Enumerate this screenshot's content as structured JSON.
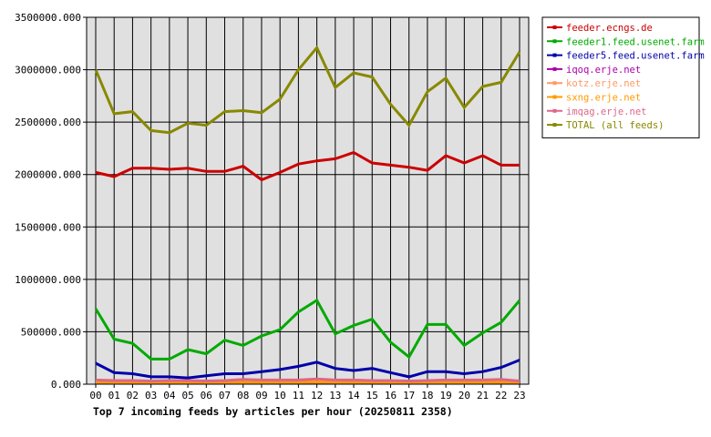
{
  "chart_data": {
    "type": "line",
    "title": "Top 7 incoming feeds by articles per hour (20250811 2358)",
    "xlabel": "",
    "ylabel": "",
    "ylim": [
      0,
      3500000
    ],
    "y_ticks": [
      "0.000",
      "500000.000",
      "1000000.000",
      "1500000.000",
      "2000000.000",
      "2500000.000",
      "3000000.000",
      "3500000.000"
    ],
    "grid": true,
    "legend_position": "right",
    "x": [
      "00",
      "01",
      "02",
      "03",
      "04",
      "05",
      "06",
      "07",
      "08",
      "09",
      "10",
      "11",
      "12",
      "13",
      "14",
      "15",
      "16",
      "17",
      "18",
      "19",
      "20",
      "21",
      "22",
      "23"
    ],
    "series": [
      {
        "name": "feeder.ecngs.de",
        "color": "#cc0000",
        "values": [
          2020000,
          1980000,
          2060000,
          2060000,
          2050000,
          2060000,
          2030000,
          2030000,
          2080000,
          1950000,
          2020000,
          2100000,
          2130000,
          2150000,
          2210000,
          2110000,
          2090000,
          2070000,
          2040000,
          2180000,
          2110000,
          2180000,
          2090000,
          2090000
        ]
      },
      {
        "name": "feeder1.feed.usenet.farm",
        "color": "#00aa00",
        "values": [
          720000,
          430000,
          390000,
          240000,
          240000,
          330000,
          290000,
          420000,
          370000,
          460000,
          520000,
          690000,
          800000,
          480000,
          560000,
          620000,
          400000,
          260000,
          570000,
          570000,
          370000,
          490000,
          590000,
          800000
        ]
      },
      {
        "name": "feeder5.feed.usenet.farm",
        "color": "#0000aa",
        "values": [
          200000,
          110000,
          100000,
          70000,
          70000,
          60000,
          80000,
          100000,
          100000,
          120000,
          140000,
          170000,
          210000,
          150000,
          130000,
          150000,
          110000,
          70000,
          120000,
          120000,
          100000,
          120000,
          160000,
          230000
        ]
      },
      {
        "name": "iqoq.erje.net",
        "color": "#aa00aa",
        "values": [
          15000,
          14000,
          14000,
          13000,
          13000,
          13000,
          13000,
          14000,
          14000,
          14000,
          15000,
          15000,
          16000,
          15000,
          15000,
          15000,
          14000,
          13000,
          14000,
          14000,
          14000,
          14000,
          15000,
          15000
        ]
      },
      {
        "name": "kotz.erje.net",
        "color": "#ff9966",
        "values": [
          18000,
          17000,
          17000,
          16000,
          16000,
          16000,
          16000,
          17000,
          17000,
          17000,
          18000,
          18000,
          19000,
          18000,
          18000,
          18000,
          17000,
          16000,
          17000,
          17000,
          17000,
          17000,
          18000,
          18000
        ]
      },
      {
        "name": "sxng.erje.net",
        "color": "#ff9900",
        "values": [
          20000,
          19000,
          19000,
          18000,
          18000,
          18000,
          18000,
          19000,
          19000,
          19000,
          20000,
          20000,
          21000,
          20000,
          20000,
          20000,
          19000,
          18000,
          19000,
          19000,
          19000,
          19000,
          20000,
          20000
        ]
      },
      {
        "name": "imqag.erje.net",
        "color": "#dd6688",
        "values": [
          40000,
          35000,
          35000,
          30000,
          35000,
          35000,
          30000,
          35000,
          45000,
          40000,
          40000,
          40000,
          50000,
          40000,
          40000,
          35000,
          35000,
          30000,
          35000,
          40000,
          40000,
          40000,
          45000,
          30000
        ]
      },
      {
        "name": "TOTAL (all feeds)",
        "color": "#888800",
        "values": [
          3000000,
          2580000,
          2600000,
          2420000,
          2400000,
          2490000,
          2470000,
          2600000,
          2610000,
          2590000,
          2720000,
          3000000,
          3210000,
          2830000,
          2970000,
          2930000,
          2670000,
          2470000,
          2790000,
          2920000,
          2640000,
          2840000,
          2880000,
          3170000
        ]
      }
    ]
  }
}
